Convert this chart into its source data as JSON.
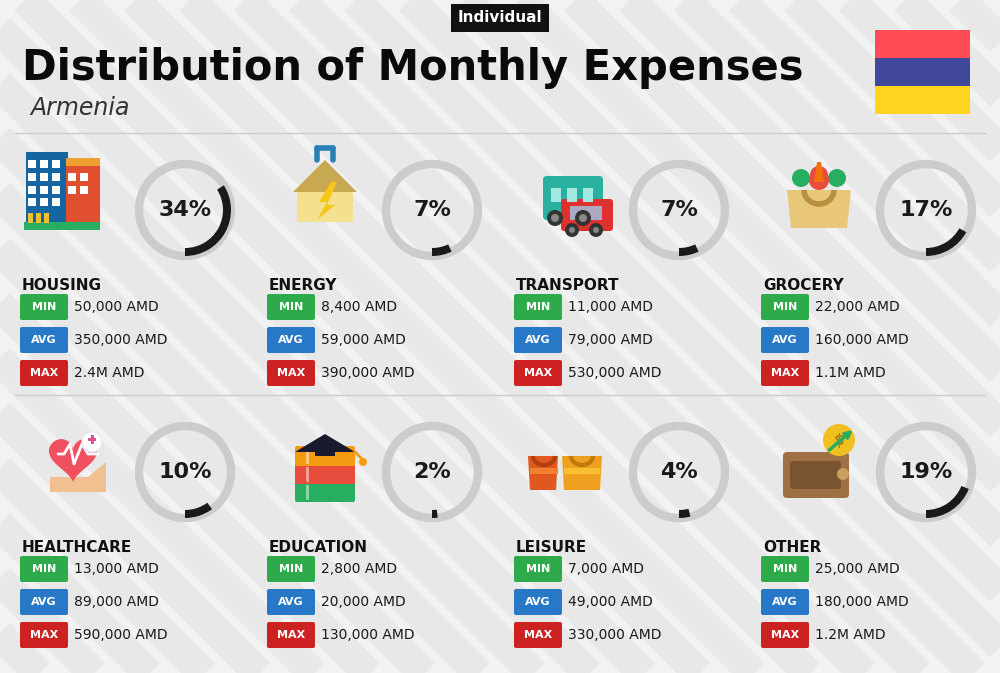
{
  "title": "Distribution of Monthly Expenses",
  "subtitle": "Armenia",
  "tag": "Individual",
  "bg_color": "#f2f2f2",
  "categories": [
    {
      "name": "HOUSING",
      "pct": 34,
      "min": "50,000 AMD",
      "avg": "350,000 AMD",
      "max": "2.4M AMD",
      "col": 0,
      "row": 0
    },
    {
      "name": "ENERGY",
      "pct": 7,
      "min": "8,400 AMD",
      "avg": "59,000 AMD",
      "max": "390,000 AMD",
      "col": 1,
      "row": 0
    },
    {
      "name": "TRANSPORT",
      "pct": 7,
      "min": "11,000 AMD",
      "avg": "79,000 AMD",
      "max": "530,000 AMD",
      "col": 2,
      "row": 0
    },
    {
      "name": "GROCERY",
      "pct": 17,
      "min": "22,000 AMD",
      "avg": "160,000 AMD",
      "max": "1.1M AMD",
      "col": 3,
      "row": 0
    },
    {
      "name": "HEALTHCARE",
      "pct": 10,
      "min": "13,000 AMD",
      "avg": "89,000 AMD",
      "max": "590,000 AMD",
      "col": 0,
      "row": 1
    },
    {
      "name": "EDUCATION",
      "pct": 2,
      "min": "2,800 AMD",
      "avg": "20,000 AMD",
      "max": "130,000 AMD",
      "col": 1,
      "row": 1
    },
    {
      "name": "LEISURE",
      "pct": 4,
      "min": "7,000 AMD",
      "avg": "49,000 AMD",
      "max": "330,000 AMD",
      "col": 2,
      "row": 1
    },
    {
      "name": "OTHER",
      "pct": 19,
      "min": "25,000 AMD",
      "avg": "180,000 AMD",
      "max": "1.2M AMD",
      "col": 3,
      "row": 1
    }
  ],
  "min_color": "#2eaa4a",
  "avg_color": "#2878c8",
  "max_color": "#cc2222",
  "flag_colors": [
    "#FF4B55",
    "#41479B",
    "#FFD520"
  ],
  "arc_dark": "#1a1a1a",
  "arc_light": "#cccccc",
  "stripe_color": "#e8e8e8"
}
